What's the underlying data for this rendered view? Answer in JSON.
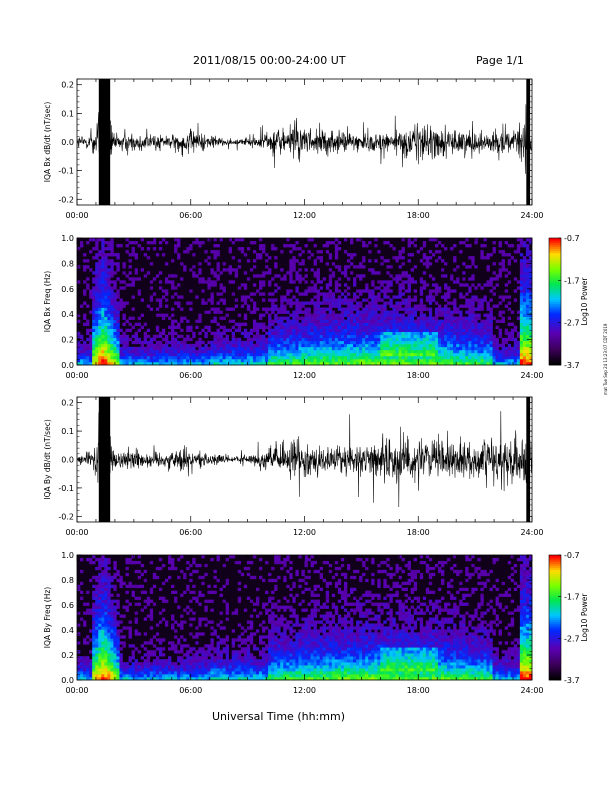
{
  "header": {
    "title": "2011/08/15  00:00-24:00 UT",
    "page": "Page 1/1"
  },
  "footer": {
    "xlabel": "Universal Time (hh:mm)",
    "side_note": "mat Tue Sep 24 13:23:07 CDT 2019"
  },
  "chart_data": [
    {
      "type": "line",
      "ylabel": "IQA Bx dB/dt (nT/sec)",
      "xticks": [
        "00:00",
        "06:00",
        "12:00",
        "18:00",
        "24:00"
      ],
      "yticks": [
        "-0.2",
        "-0.1",
        "0.0",
        "0.1",
        "0.2"
      ],
      "xlim": [
        0,
        24
      ],
      "ylim": [
        -0.22,
        0.22
      ],
      "grid": false,
      "envelope_x": [
        0,
        0.5,
        1,
        1.2,
        1.4,
        1.7,
        2,
        3,
        4,
        5,
        6,
        7,
        8,
        9,
        10,
        10.8,
        11,
        11.5,
        12,
        12.5,
        13,
        14,
        15,
        16,
        17,
        18,
        19,
        20,
        21,
        22,
        23,
        23.6,
        23.8,
        24
      ],
      "envelope_y": [
        0.05,
        0.05,
        0.1,
        0.22,
        0.22,
        0.22,
        0.06,
        0.07,
        0.06,
        0.05,
        0.09,
        0.05,
        0.025,
        0.025,
        0.07,
        0.12,
        0.08,
        0.15,
        0.09,
        0.1,
        0.08,
        0.08,
        0.07,
        0.08,
        0.09,
        0.14,
        0.12,
        0.1,
        0.09,
        0.08,
        0.07,
        0.22,
        0.22,
        0.1
      ]
    },
    {
      "type": "heatmap",
      "ylabel": "IQA Bx Freq (Hz)",
      "xticks": [
        "00:00",
        "06:00",
        "12:00",
        "18:00",
        "24:00"
      ],
      "yticks": [
        "0.0",
        "0.2",
        "0.4",
        "0.6",
        "0.8",
        "1.0"
      ],
      "xlim": [
        0,
        24
      ],
      "ylim": [
        0,
        1.0
      ],
      "colorbar": {
        "label": "Log10 Power",
        "ticks": [
          "-0.7",
          "-1.7",
          "-2.7",
          "-3.7"
        ],
        "range": [
          -3.7,
          -0.7
        ]
      }
    },
    {
      "type": "line",
      "ylabel": "IQA By dB/dt (nT/sec)",
      "xticks": [
        "00:00",
        "06:00",
        "12:00",
        "18:00",
        "24:00"
      ],
      "yticks": [
        "-0.2",
        "-0.1",
        "0.0",
        "0.1",
        "0.2"
      ],
      "xlim": [
        0,
        24
      ],
      "ylim": [
        -0.22,
        0.22
      ],
      "grid": false,
      "envelope_x": [
        0,
        0.5,
        1,
        1.2,
        1.4,
        1.7,
        2,
        3,
        4,
        5,
        5.5,
        6,
        7,
        8,
        9,
        10,
        10.8,
        11,
        11.5,
        12,
        12.5,
        13,
        14,
        15,
        16,
        17,
        18,
        19,
        20,
        21,
        22,
        23,
        23.6,
        23.8,
        24
      ],
      "envelope_y": [
        0.05,
        0.05,
        0.1,
        0.22,
        0.22,
        0.22,
        0.06,
        0.07,
        0.06,
        0.06,
        0.1,
        0.06,
        0.05,
        0.025,
        0.03,
        0.08,
        0.12,
        0.1,
        0.15,
        0.1,
        0.11,
        0.09,
        0.1,
        0.12,
        0.14,
        0.16,
        0.15,
        0.14,
        0.12,
        0.14,
        0.13,
        0.15,
        0.22,
        0.22,
        0.1
      ]
    },
    {
      "type": "heatmap",
      "ylabel": "IQA By Freq (Hz)",
      "xticks": [
        "00:00",
        "06:00",
        "12:00",
        "18:00",
        "24:00"
      ],
      "yticks": [
        "0.0",
        "0.2",
        "0.4",
        "0.6",
        "0.8",
        "1.0"
      ],
      "xlim": [
        0,
        24
      ],
      "ylim": [
        0,
        1.0
      ],
      "colorbar": {
        "label": "Log10 Power",
        "ticks": [
          "-0.7",
          "-1.7",
          "-2.7",
          "-3.7"
        ],
        "range": [
          -3.7,
          -0.7
        ]
      }
    }
  ]
}
